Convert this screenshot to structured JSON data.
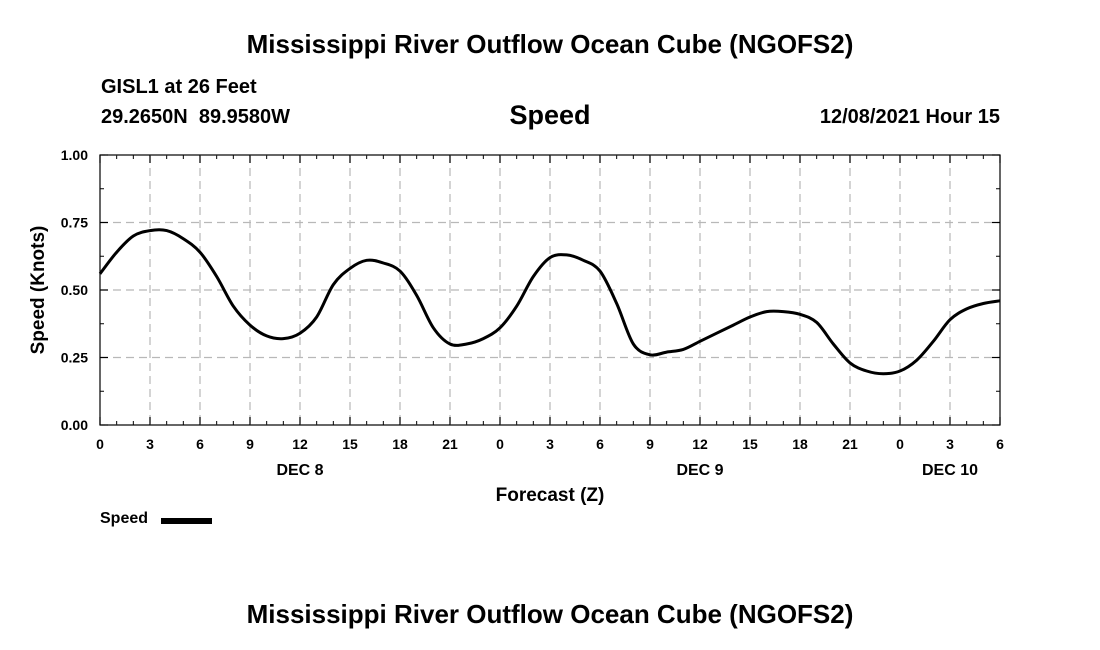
{
  "page_title": "Mississippi River Outflow Ocean Cube (NGOFS2)",
  "footer_title": "Mississippi River Outflow Ocean Cube (NGOFS2)",
  "station": "GISL1 at 26 Feet",
  "coords": "29.2650N  89.9580W",
  "variable": "Speed",
  "timestamp": "12/08/2021 Hour 15",
  "legend": {
    "label": "Speed",
    "color": "#000000"
  },
  "chart_data": {
    "type": "line",
    "title": "Speed",
    "xlabel": "Forecast (Z)",
    "ylabel": "Speed (Knots)",
    "x_unit": "hours from Dec 8 00Z",
    "xlim": [
      0,
      54
    ],
    "ylim": [
      0,
      1
    ],
    "grid": true,
    "yticks": [
      {
        "value": 0.0,
        "label": "0.00"
      },
      {
        "value": 0.25,
        "label": "0.25"
      },
      {
        "value": 0.5,
        "label": "0.50"
      },
      {
        "value": 0.75,
        "label": "0.75"
      },
      {
        "value": 1.0,
        "label": "1.00"
      }
    ],
    "xticks": [
      {
        "value": 0,
        "label": "0"
      },
      {
        "value": 3,
        "label": "3"
      },
      {
        "value": 6,
        "label": "6"
      },
      {
        "value": 9,
        "label": "9"
      },
      {
        "value": 12,
        "label": "12"
      },
      {
        "value": 15,
        "label": "15"
      },
      {
        "value": 18,
        "label": "18"
      },
      {
        "value": 21,
        "label": "21"
      },
      {
        "value": 24,
        "label": "0"
      },
      {
        "value": 27,
        "label": "3"
      },
      {
        "value": 30,
        "label": "6"
      },
      {
        "value": 33,
        "label": "9"
      },
      {
        "value": 36,
        "label": "12"
      },
      {
        "value": 39,
        "label": "15"
      },
      {
        "value": 42,
        "label": "18"
      },
      {
        "value": 45,
        "label": "21"
      },
      {
        "value": 48,
        "label": "0"
      },
      {
        "value": 51,
        "label": "3"
      },
      {
        "value": 54,
        "label": "6"
      }
    ],
    "date_labels": [
      {
        "value": 12,
        "label": "DEC 8"
      },
      {
        "value": 36,
        "label": "DEC 9"
      },
      {
        "value": 51,
        "label": "DEC 10"
      }
    ],
    "series": [
      {
        "name": "Speed",
        "color": "#000000",
        "x": [
          0,
          1,
          2,
          3,
          4,
          5,
          6,
          7,
          8,
          9,
          10,
          11,
          12,
          13,
          14,
          15,
          16,
          17,
          18,
          19,
          20,
          21,
          22,
          23,
          24,
          25,
          26,
          27,
          28,
          29,
          30,
          31,
          32,
          33,
          34,
          35,
          36,
          37,
          38,
          39,
          40,
          41,
          42,
          43,
          44,
          45,
          46,
          47,
          48,
          49,
          50,
          51,
          52,
          53,
          54
        ],
        "values": [
          0.56,
          0.64,
          0.7,
          0.72,
          0.72,
          0.69,
          0.64,
          0.55,
          0.44,
          0.37,
          0.33,
          0.32,
          0.34,
          0.4,
          0.52,
          0.58,
          0.61,
          0.6,
          0.57,
          0.48,
          0.36,
          0.3,
          0.3,
          0.32,
          0.36,
          0.44,
          0.55,
          0.62,
          0.63,
          0.61,
          0.57,
          0.45,
          0.3,
          0.26,
          0.27,
          0.28,
          0.31,
          0.34,
          0.37,
          0.4,
          0.42,
          0.42,
          0.41,
          0.38,
          0.3,
          0.23,
          0.2,
          0.19,
          0.2,
          0.24,
          0.31,
          0.39,
          0.43,
          0.45,
          0.46
        ]
      }
    ]
  }
}
